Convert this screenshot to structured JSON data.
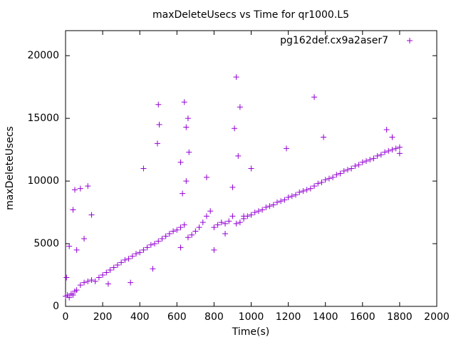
{
  "chart_data": {
    "type": "scatter",
    "title": "maxDeleteUsecs vs Time for qr1000.L5",
    "x_label": "Time(s)",
    "y_label": "maxDeleteUsecs",
    "xlim": [
      0,
      2000
    ],
    "xticks": [
      0,
      200,
      400,
      600,
      800,
      1000,
      1200,
      1400,
      1600,
      1800,
      2000
    ],
    "ylim": [
      0,
      22000
    ],
    "yticks": [
      0,
      5000,
      10000,
      15000,
      20000
    ],
    "grid": false,
    "legend": "top-right",
    "series": [
      {
        "name": "pg162def.cx9a2aser7",
        "color": "#9400d3",
        "x": [
          0,
          10,
          20,
          30,
          40,
          50,
          60,
          80,
          100,
          120,
          140,
          160,
          180,
          200,
          220,
          240,
          260,
          280,
          300,
          320,
          340,
          360,
          380,
          400,
          420,
          440,
          460,
          480,
          500,
          520,
          540,
          560,
          580,
          600,
          620,
          640,
          660,
          680,
          700,
          720,
          740,
          760,
          780,
          800,
          820,
          840,
          860,
          880,
          900,
          920,
          940,
          960,
          980,
          1000,
          1020,
          1040,
          1060,
          1080,
          1100,
          1120,
          1140,
          1160,
          1180,
          1200,
          1220,
          1240,
          1260,
          1280,
          1300,
          1320,
          1340,
          1360,
          1380,
          1400,
          1420,
          1440,
          1460,
          1480,
          1500,
          1520,
          1540,
          1560,
          1580,
          1600,
          1620,
          1640,
          1660,
          1680,
          1700,
          1720,
          1740,
          1760,
          1780,
          1800,
          5,
          20,
          40,
          50,
          80,
          120,
          140,
          100,
          60,
          420,
          500,
          495,
          505,
          640,
          660,
          650,
          665,
          620,
          760,
          920,
          940,
          910,
          930,
          1000,
          1190,
          1340,
          1390,
          1730,
          350,
          470,
          620,
          800,
          860,
          960,
          230,
          630,
          650,
          900,
          1760,
          1800
        ],
        "values": [
          800,
          900,
          700,
          1000,
          900,
          1200,
          1300,
          1700,
          1900,
          2000,
          2100,
          2000,
          2300,
          2500,
          2700,
          2900,
          3100,
          3300,
          3500,
          3700,
          3800,
          4000,
          4200,
          4300,
          4500,
          4700,
          4900,
          5000,
          5200,
          5400,
          5600,
          5800,
          6000,
          6100,
          6300,
          6500,
          5500,
          5700,
          6000,
          6300,
          6700,
          7200,
          7600,
          6300,
          6500,
          6700,
          6600,
          6800,
          7200,
          6600,
          6700,
          7000,
          7200,
          7300,
          7500,
          7600,
          7700,
          7900,
          8000,
          8100,
          8300,
          8400,
          8500,
          8700,
          8800,
          8900,
          9100,
          9200,
          9300,
          9400,
          9600,
          9800,
          9900,
          10100,
          10200,
          10300,
          10500,
          10600,
          10800,
          10900,
          11000,
          11200,
          11300,
          11500,
          11600,
          11700,
          11800,
          12000,
          12100,
          12300,
          12400,
          12500,
          12600,
          12700,
          2300,
          4800,
          7700,
          9300,
          9400,
          9600,
          7300,
          5400,
          4500,
          11000,
          16100,
          13000,
          14500,
          16300,
          15000,
          14300,
          12300,
          11500,
          10300,
          18300,
          15900,
          14200,
          12000,
          11000,
          12600,
          16700,
          13500,
          14100,
          1900,
          3000,
          4700,
          4500,
          5800,
          7200,
          1800,
          9000,
          10000,
          9500,
          13500,
          12200
        ]
      }
    ]
  }
}
